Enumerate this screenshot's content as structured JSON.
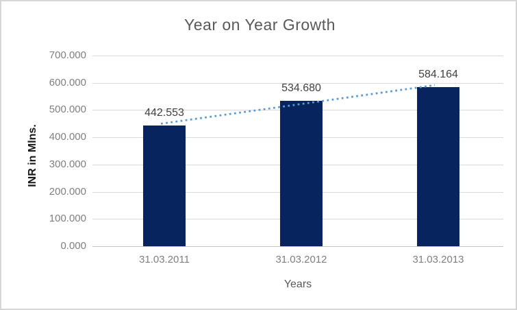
{
  "frame": {
    "background": "#ffffff",
    "border_color": "#d6d6d6"
  },
  "chart_data": {
    "type": "bar",
    "title": "Year on Year Growth",
    "xlabel": "Years",
    "ylabel": "INR in Mlns.",
    "categories": [
      "31.03.2011",
      "31.03.2012",
      "31.03.2013"
    ],
    "values": [
      442.553,
      534.68,
      584.164
    ],
    "data_labels": [
      "442.553",
      "534.680",
      "584.164"
    ],
    "ylim": [
      0,
      700
    ],
    "ytick_step": 100,
    "ytick_labels": [
      "700.000",
      "600.000",
      "500.000",
      "400.000",
      "300.000",
      "200.000",
      "100.000",
      "0.000"
    ],
    "grid": true,
    "legend": "none",
    "bar_color": "#08245e",
    "gridline_color": "#d9d9d9",
    "title_color": "#595959",
    "tick_label_color": "#7f7f7f",
    "data_label_color": "#404040",
    "trendline": {
      "type": "linear",
      "style": "dotted",
      "color": "#5b9bd5",
      "fit_at_first": 449.66,
      "fit_at_last": 591.27
    }
  }
}
